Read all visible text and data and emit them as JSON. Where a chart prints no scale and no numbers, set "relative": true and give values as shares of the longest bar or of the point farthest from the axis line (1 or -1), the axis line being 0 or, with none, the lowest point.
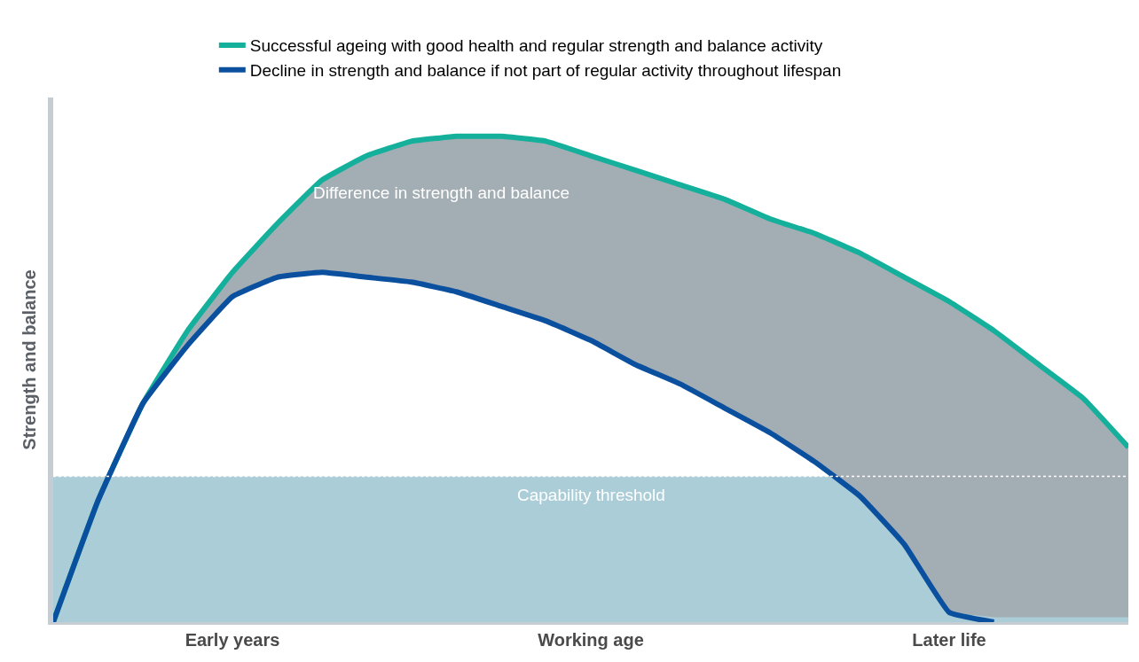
{
  "chart_data": {
    "type": "line",
    "relative": true,
    "ylabel": "Strength and balance",
    "categories": [
      null,
      null,
      null,
      null,
      "Early years",
      null,
      null,
      null,
      null,
      null,
      null,
      null,
      "Working age",
      null,
      null,
      null,
      null,
      null,
      null,
      null,
      "Later life",
      null,
      null,
      null,
      null
    ],
    "series": [
      {
        "name": "Successful ageing with good health and regular strength and balance activity",
        "color": "#14b09b",
        "values": [
          0,
          0.25,
          0.45,
          0.6,
          0.72,
          0.82,
          0.91,
          0.96,
          0.99,
          1,
          1,
          0.99,
          0.96,
          0.93,
          0.9,
          0.87,
          0.83,
          0.8,
          0.76,
          0.71,
          0.66,
          0.6,
          0.53,
          0.46,
          0.36
        ],
        "lower": [
          0,
          0.25,
          0.45,
          0.57,
          0.67,
          0.71,
          0.72,
          0.71,
          0.7,
          0.68,
          0.65,
          0.62,
          0.58,
          0.53,
          0.49,
          0.44,
          0.39,
          0.33,
          0.26,
          0.16,
          0.02,
          0.01,
          0.01,
          0.01,
          0.01
        ],
        "upper": [
          0,
          0.25,
          0.45,
          0.6,
          0.72,
          0.82,
          0.91,
          0.96,
          0.99,
          1,
          1,
          0.99,
          0.96,
          0.93,
          0.9,
          0.87,
          0.83,
          0.8,
          0.76,
          0.71,
          0.66,
          0.6,
          0.53,
          0.46,
          0.36
        ]
      },
      {
        "name": "Decline in strength and balance if not part of regular activity throughout lifespan",
        "color": "#0a509e",
        "values": [
          0,
          0.25,
          0.45,
          0.57,
          0.67,
          0.71,
          0.72,
          0.71,
          0.7,
          0.68,
          0.65,
          0.62,
          0.58,
          0.53,
          0.49,
          0.44,
          0.39,
          0.33,
          0.26,
          0.16,
          0.02,
          0,
          null,
          null,
          null
        ]
      }
    ],
    "bands": [
      {
        "axis": "y",
        "from": 0,
        "to": 0.3,
        "label": "Capability threshold",
        "color": "#8fbccb"
      }
    ],
    "ref_lines": [
      {
        "axis": "y",
        "value": 0.3,
        "color": "#ffffff",
        "line_style": "dotted"
      }
    ],
    "annotations": [
      "Difference in strength and balance"
    ],
    "legend": "top",
    "line_style": "solid",
    "marker": "none"
  }
}
